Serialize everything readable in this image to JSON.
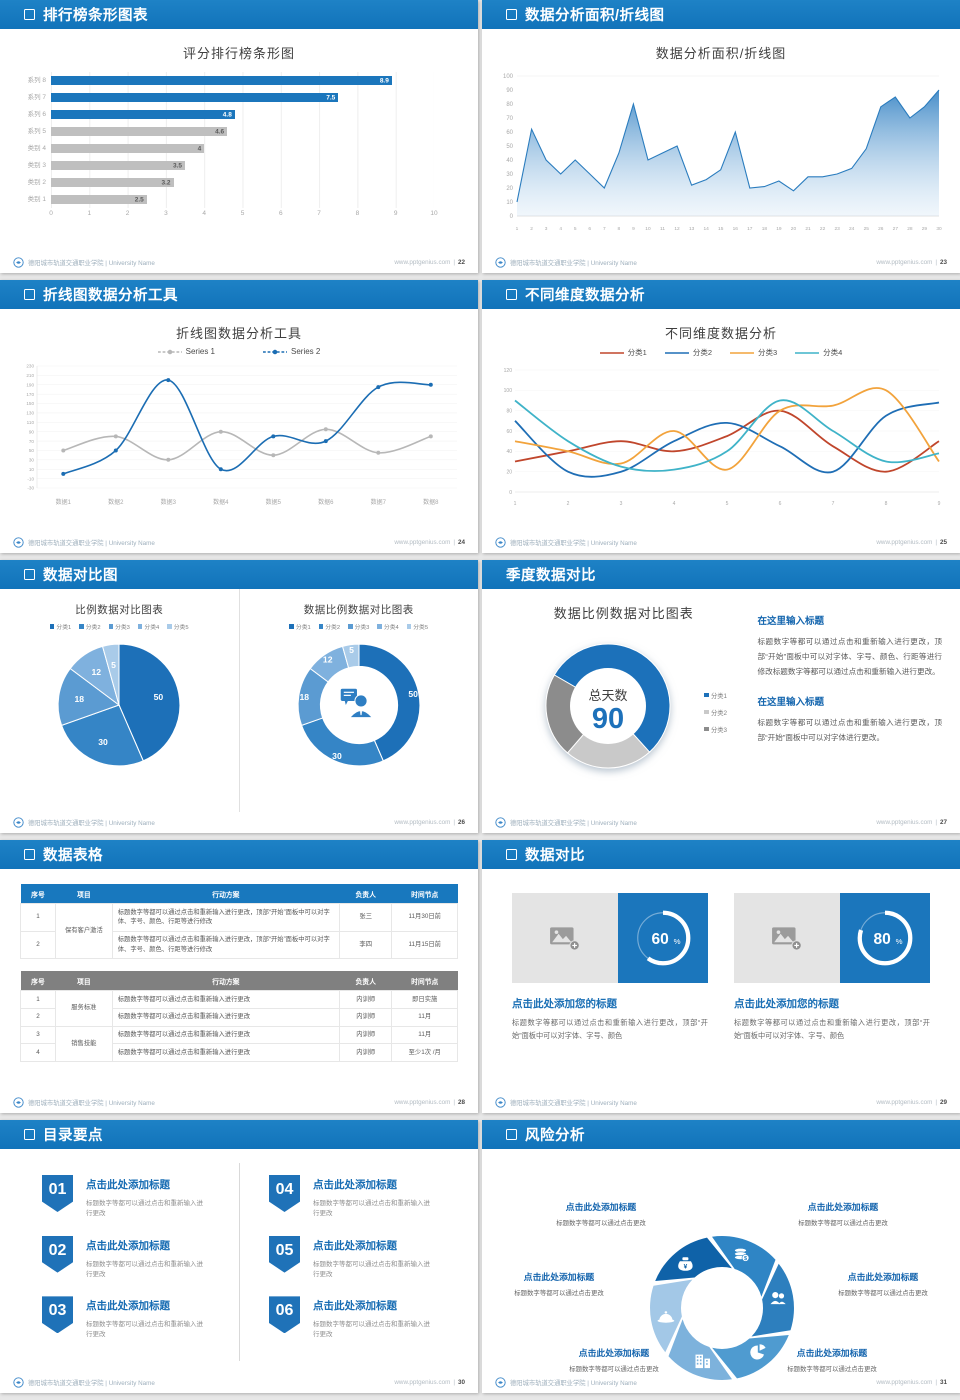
{
  "footer": {
    "left_text": "德阳城市轨道交通职业学院 | University Name",
    "site": "www.pptgenius.com"
  },
  "slides": [
    {
      "page_no": "22",
      "header_title": "排行榜条形图表",
      "type": "hbar",
      "chart": {
        "type": "bar",
        "title": "评分排行榜条形图",
        "categories": [
          "系列 8",
          "系列 7",
          "系列 6",
          "系列 5",
          "类别 4",
          "类别 3",
          "类别 2",
          "类别 1"
        ],
        "values": [
          8.9,
          7.5,
          4.8,
          4.6,
          4,
          3.5,
          3.2,
          2.5
        ],
        "colors": [
          "#1b76bc",
          "#1b76bc",
          "#1b76bc",
          "#bfbfbf",
          "#bfbfbf",
          "#bfbfbf",
          "#bfbfbf",
          "#bfbfbf"
        ],
        "xticks": [
          0,
          1,
          2,
          3,
          4,
          5,
          6,
          7,
          8,
          9,
          10
        ],
        "xmax": 10
      }
    },
    {
      "page_no": "23",
      "header_title": "数据分析面积/折线图",
      "type": "area",
      "chart": {
        "type": "area",
        "title": "数据分析面积/折线图",
        "x": [
          "1",
          "2",
          "3",
          "4",
          "5",
          "6",
          "7",
          "8",
          "9",
          "10",
          "11",
          "12",
          "13",
          "14",
          "15",
          "16",
          "17",
          "18",
          "19",
          "20",
          "21",
          "22",
          "23",
          "24",
          "25",
          "26",
          "27",
          "28",
          "29",
          "30"
        ],
        "values": [
          10,
          62,
          40,
          30,
          40,
          30,
          20,
          45,
          80,
          40,
          45,
          50,
          22,
          26,
          33,
          60,
          20,
          21,
          25,
          18,
          28,
          28,
          30,
          34,
          48,
          78,
          85,
          70,
          78,
          90
        ],
        "yticks": [
          0,
          10,
          20,
          30,
          40,
          50,
          60,
          70,
          80,
          90,
          100
        ],
        "ymax": 100,
        "line_color": "#2a7cbe"
      }
    },
    {
      "page_no": "24",
      "header_title": "折线图数据分析工具",
      "type": "lines",
      "chart": {
        "type": "line",
        "title": "折线图数据分析工具",
        "categories": [
          "数据1",
          "数据2",
          "数据3",
          "数据4",
          "数据5",
          "数据6",
          "数据7",
          "数据8"
        ],
        "yticks": [
          -30,
          -10,
          10,
          30,
          50,
          70,
          90,
          110,
          130,
          150,
          170,
          190,
          210,
          230
        ],
        "ymin": -30,
        "ymax": 230,
        "series": [
          {
            "name": "Series 1",
            "color": "#b7b7b7",
            "values": [
              50,
              80,
              30,
              90,
              40,
              95,
              45,
              80
            ]
          },
          {
            "name": "Series 2",
            "color": "#1b6db3",
            "values": [
              0,
              50,
              200,
              10,
              80,
              70,
              185,
              190
            ]
          }
        ]
      }
    },
    {
      "page_no": "25",
      "header_title": "不同维度数据分析",
      "type": "multilines",
      "chart": {
        "type": "line",
        "title": "不同维度数据分析",
        "x": [
          "1",
          "2",
          "3",
          "4",
          "5",
          "6",
          "7",
          "8",
          "9"
        ],
        "yticks": [
          0,
          20,
          40,
          60,
          80,
          100,
          120
        ],
        "ymin": 0,
        "ymax": 120,
        "series": [
          {
            "name": "分类1",
            "color": "#c0462c",
            "values": [
              30,
              40,
              50,
              40,
              55,
              80,
              45,
              20,
              50
            ]
          },
          {
            "name": "分类2",
            "color": "#1f6eb5",
            "values": [
              70,
              20,
              20,
              50,
              68,
              45,
              20,
              75,
              88
            ]
          },
          {
            "name": "分类3",
            "color": "#f2a33c",
            "values": [
              50,
              40,
              28,
              60,
              22,
              80,
              85,
              100,
              30
            ]
          },
          {
            "name": "分类4",
            "color": "#3fb3c8",
            "values": [
              90,
              50,
              25,
              22,
              40,
              90,
              60,
              30,
              38
            ]
          }
        ]
      }
    },
    {
      "page_no": "26",
      "header_title": "数据对比图",
      "type": "pies",
      "panels": [
        {
          "type": "pie",
          "title": "比例数据对比图表",
          "legend": [
            "分类1",
            "分类2",
            "分类3",
            "分类4",
            "分类5"
          ],
          "values": [
            50,
            30,
            18,
            12,
            5
          ],
          "colors": [
            "#1d70b8",
            "#3585c6",
            "#5b9bd2",
            "#7fb1de",
            "#a9cbe9"
          ],
          "donut": false
        },
        {
          "type": "donut",
          "title": "数据比例数据对比图表",
          "legend": [
            "分类1",
            "分类2",
            "分类3",
            "分类4",
            "分类5"
          ],
          "values": [
            50,
            30,
            18,
            12,
            5
          ],
          "colors": [
            "#1d70b8",
            "#3585c6",
            "#5b9bd2",
            "#7fb1de",
            "#a9cbe9"
          ],
          "donut": true,
          "center_icon": "person-speech-icon"
        }
      ]
    },
    {
      "page_no": "27",
      "header_title": "季度数据对比",
      "no_icon": true,
      "type": "donut-summary",
      "chart": {
        "type": "donut",
        "title": "数据比例数据对比图表",
        "legend": [
          "分类1",
          "分类2",
          "分类3"
        ],
        "values": [
          55,
          23,
          22
        ],
        "start_deg": -60,
        "colors": [
          "#1d71ba",
          "#c9c9c9",
          "#8c8c8c"
        ],
        "center_label": "总天数",
        "center_value": "90"
      },
      "blocks": [
        {
          "heading": "在这里输入标题",
          "body": "标题数字等都可以通过点击和重新输入进行更改，顶部“开始”面板中可以对字体、字号、颜色、行距等进行修改标题数字等都可以通过点击和重新输入进行更改。"
        },
        {
          "heading": "在这里输入标题",
          "body": "标题数字等都可以通过点击和重新输入进行更改，顶部“开始”面板中可以对字体进行更改。"
        }
      ]
    },
    {
      "page_no": "28",
      "header_title": "数据表格",
      "type": "tables",
      "columns": [
        "序号",
        "项目",
        "行动方案",
        "负责人",
        "时间节点"
      ],
      "tables": [
        {
          "header_bg": "#1878be",
          "rows": [
            {
              "no": "1",
              "item": "保有客户激活",
              "rowspan": 2,
              "plan": "标题数字等都可以通过点击和重新输入进行更改，顶部“开始”面板中可以对字体、字号、颜色、行距等进行修改",
              "owner": "张三",
              "time": "11月30日前"
            },
            {
              "no": "2",
              "plan": "标题数字等都可以通过点击和重新输入进行更改，顶部“开始”面板中可以对字体、字号、颜色、行距等进行修改",
              "owner": "李四",
              "time": "11月15日前"
            }
          ]
        },
        {
          "header_bg": "#808080",
          "rows": [
            {
              "no": "1",
              "item": "服务标准",
              "rowspan": 2,
              "plan": "标题数字等都可以通过点击和重新输入进行更改",
              "owner": "内训师",
              "time": "即日实施"
            },
            {
              "no": "2",
              "plan": "标题数字等都可以通过点击和重新输入进行更改",
              "owner": "内训师",
              "time": "11月"
            },
            {
              "no": "3",
              "item": "销售技能",
              "rowspan": 2,
              "plan": "标题数字等都可以通过点击和重新输入进行更改",
              "owner": "内训师",
              "time": "11月"
            },
            {
              "no": "4",
              "plan": "标题数字等都可以通过点击和重新输入进行更改",
              "owner": "内训师",
              "time": "至少1次 /月"
            }
          ]
        }
      ]
    },
    {
      "page_no": "29",
      "header_title": "数据对比",
      "type": "progress-cards",
      "cards": [
        {
          "percent": 60,
          "heading": "点击此处添加您的标题",
          "body": "标题数字等都可以通过点击和重新输入进行更改，顶部“开始”面板中可以对字体、字号、颜色"
        },
        {
          "percent": 80,
          "heading": "点击此处添加您的标题",
          "body": "标题数字等都可以通过点击和重新输入进行更改，顶部“开始”面板中可以对字体、字号、颜色"
        }
      ],
      "ring_color": "#ffffff",
      "box_color": "#1b76bc"
    },
    {
      "page_no": "30",
      "header_title": "目录要点",
      "type": "toc",
      "items": [
        {
          "num": "01",
          "heading": "点击此处添加标题",
          "sub": "标题数字等都可以通过点击和重新输入进行更改"
        },
        {
          "num": "02",
          "heading": "点击此处添加标题",
          "sub": "标题数字等都可以通过点击和重新输入进行更改"
        },
        {
          "num": "03",
          "heading": "点击此处添加标题",
          "sub": "标题数字等都可以通过点击和重新输入进行更改"
        },
        {
          "num": "04",
          "heading": "点击此处添加标题",
          "sub": "标题数字等都可以通过点击和重新输入进行更改"
        },
        {
          "num": "05",
          "heading": "点击此处添加标题",
          "sub": "标题数字等都可以通过点击和重新输入进行更改"
        },
        {
          "num": "06",
          "heading": "点击此处添加标题",
          "sub": "标题数字等都可以通过点击和重新输入进行更改"
        }
      ],
      "badge_color": "#1f72b8"
    },
    {
      "page_no": "31",
      "header_title": "风险分析",
      "type": "risk",
      "blade_colors": [
        "#0f62a8",
        "#2f85c5",
        "#2d7fbe",
        "#4f9bd0",
        "#7db2dc",
        "#a3c8e7"
      ],
      "items": [
        {
          "pos": "tl",
          "icon": "money-bag-icon",
          "heading": "点击此处添加标题",
          "sub": "标题数字等都可以通过点击更改"
        },
        {
          "pos": "tr",
          "icon": "coins-icon",
          "heading": "点击此处添加标题",
          "sub": "标题数字等都可以通过点击更改"
        },
        {
          "pos": "l",
          "icon": "helmet-icon",
          "heading": "点击此处添加标题",
          "sub": "标题数字等都可以通过点击更改"
        },
        {
          "pos": "r",
          "icon": "people-icon",
          "heading": "点击此处添加标题",
          "sub": "标题数字等都可以通过点击更改"
        },
        {
          "pos": "bl",
          "icon": "building-icon",
          "heading": "点击此处添加标题",
          "sub": "标题数字等都可以通过点击更改"
        },
        {
          "pos": "br",
          "icon": "pie-chart-icon",
          "heading": "点击此处添加标题",
          "sub": "标题数字等都可以通过点击更改"
        }
      ]
    }
  ]
}
